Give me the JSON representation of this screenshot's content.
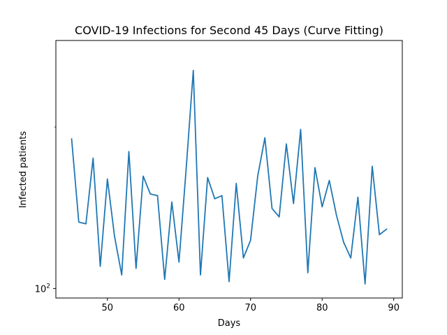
{
  "chart_data": {
    "type": "line",
    "title": "COVID-19 Infections for Second 45 Days (Curve Fitting)",
    "xlabel": "Days",
    "ylabel": "Infected patients",
    "xlim": [
      42.8,
      91.2
    ],
    "ylim": [
      96,
      290
    ],
    "yscale": "log",
    "grid": false,
    "x_ticks": [
      {
        "value": 50,
        "label": "50"
      },
      {
        "value": 60,
        "label": "60"
      },
      {
        "value": 70,
        "label": "70"
      },
      {
        "value": 80,
        "label": "80"
      },
      {
        "value": 90,
        "label": "90"
      }
    ],
    "y_ticks": [
      {
        "value": 100,
        "base": "10",
        "exp": "2"
      }
    ],
    "series": [
      {
        "color": "#1f77b4",
        "x": [
          45,
          46,
          47,
          48,
          49,
          50,
          51,
          52,
          53,
          54,
          55,
          56,
          57,
          58,
          59,
          60,
          61,
          62,
          63,
          64,
          65,
          66,
          67,
          68,
          69,
          70,
          71,
          72,
          73,
          74,
          75,
          76,
          77,
          78,
          79,
          80,
          81,
          82,
          83,
          84,
          85,
          86,
          87,
          88,
          89
        ],
        "y": [
          190,
          133,
          132,
          175,
          110,
          160,
          125,
          106,
          180,
          109,
          162,
          150,
          149,
          104,
          145,
          112,
          167,
          255,
          106,
          161,
          147,
          149,
          103,
          157,
          114,
          123,
          162,
          191,
          141,
          136,
          186,
          144,
          198,
          107,
          168,
          142,
          159,
          137,
          122,
          114,
          148,
          102,
          169,
          126,
          129
        ]
      }
    ]
  }
}
